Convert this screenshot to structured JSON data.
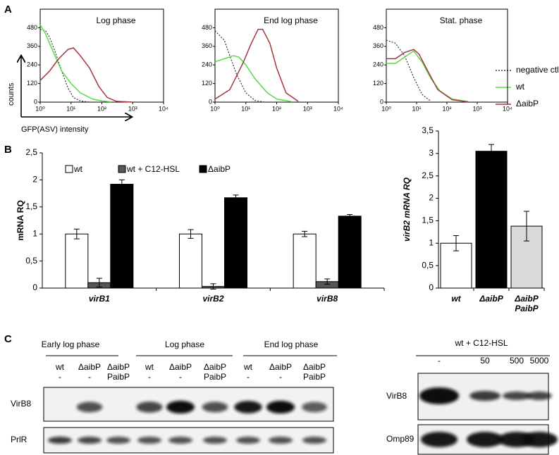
{
  "panel_labels": [
    "A",
    "B",
    "C"
  ],
  "chart_data": [
    {
      "type": "line",
      "title": "Log phase",
      "log_x": true,
      "xlim": [
        1,
        10000
      ],
      "xticks": [
        {
          "value": 1,
          "label": "10⁰"
        },
        {
          "value": 10,
          "label": "10¹"
        },
        {
          "value": 100,
          "label": "10²"
        },
        {
          "value": 1000,
          "label": "10³"
        },
        {
          "value": 10000,
          "label": "10⁴"
        }
      ],
      "ylim": [
        0,
        600
      ],
      "yticks": [
        0,
        120,
        240,
        360,
        480
      ],
      "y_label": "counts",
      "x_label": "GFP(ASV) intensity",
      "legend": "right",
      "series": [
        {
          "name": "negative ctl",
          "color": "#333333",
          "dashed": true,
          "x": [
            1,
            1.5,
            2,
            3,
            5,
            8,
            12,
            20,
            40
          ],
          "values": [
            470,
            460,
            420,
            330,
            200,
            90,
            30,
            8,
            0
          ]
        },
        {
          "name": "wt",
          "color": "#55dd44",
          "dashed": false,
          "x": [
            1,
            1.5,
            2,
            3,
            5,
            10,
            20,
            50,
            100,
            200
          ],
          "values": [
            500,
            440,
            380,
            300,
            200,
            120,
            60,
            20,
            8,
            2
          ]
        },
        {
          "name": "ΔaibP",
          "color": "#a5353f",
          "dashed": false,
          "x": [
            1,
            2,
            4,
            8,
            12,
            20,
            40,
            80,
            150,
            300,
            1000
          ],
          "values": [
            140,
            200,
            280,
            340,
            350,
            300,
            220,
            100,
            30,
            5,
            0
          ]
        }
      ]
    },
    {
      "type": "line",
      "title": "End log phase",
      "log_x": true,
      "xlim": [
        1,
        10000
      ],
      "xticks": [
        {
          "value": 1,
          "label": "10⁰"
        },
        {
          "value": 10,
          "label": "10¹"
        },
        {
          "value": 100,
          "label": "10²"
        },
        {
          "value": 1000,
          "label": "10³"
        },
        {
          "value": 10000,
          "label": "10⁴"
        }
      ],
      "ylim": [
        0,
        600
      ],
      "yticks": [
        0,
        120,
        240,
        360,
        480
      ],
      "series": [
        {
          "color": "#333333",
          "dashed": true,
          "x": [
            1,
            2,
            3,
            5,
            10,
            20,
            40
          ],
          "values": [
            460,
            400,
            300,
            180,
            60,
            10,
            0
          ]
        },
        {
          "color": "#55dd44",
          "dashed": false,
          "x": [
            1,
            2,
            4,
            6,
            10,
            20,
            50,
            100,
            300
          ],
          "values": [
            260,
            280,
            300,
            290,
            240,
            150,
            60,
            20,
            3
          ]
        },
        {
          "color": "#a5353f",
          "dashed": false,
          "x": [
            1,
            3,
            8,
            15,
            25,
            35,
            60,
            100,
            200,
            500
          ],
          "values": [
            20,
            80,
            250,
            380,
            470,
            470,
            380,
            220,
            60,
            5
          ]
        }
      ]
    },
    {
      "type": "line",
      "title": "Stat. phase",
      "log_x": true,
      "xlim": [
        1,
        10000
      ],
      "xticks": [
        {
          "value": 1,
          "label": "10⁰"
        },
        {
          "value": 10,
          "label": "10¹"
        },
        {
          "value": 100,
          "label": "10²"
        },
        {
          "value": 1000,
          "label": "10³"
        },
        {
          "value": 10000,
          "label": "10⁴"
        }
      ],
      "ylim": [
        0,
        600
      ],
      "yticks": [
        0,
        120,
        240,
        360,
        480
      ],
      "series": [
        {
          "color": "#333333",
          "dashed": true,
          "x": [
            1,
            2,
            4,
            8,
            15,
            30
          ],
          "values": [
            400,
            380,
            300,
            160,
            50,
            5
          ]
        },
        {
          "color": "#55dd44",
          "dashed": false,
          "x": [
            1,
            2,
            4,
            8,
            15,
            30,
            60,
            150,
            500
          ],
          "values": [
            250,
            250,
            290,
            330,
            260,
            150,
            70,
            20,
            3
          ]
        },
        {
          "color": "#a5353f",
          "dashed": false,
          "x": [
            1,
            2,
            4,
            8,
            12,
            25,
            50,
            150,
            500
          ],
          "values": [
            280,
            280,
            320,
            340,
            310,
            190,
            80,
            15,
            2
          ]
        }
      ]
    },
    {
      "type": "bar",
      "y_label": "mRNA RQ",
      "categories": [
        "virB1",
        "virB2",
        "virB8"
      ],
      "ylim": [
        0,
        2.5
      ],
      "yticks": [
        0,
        {
          "value": 0.5,
          "label": "0,5"
        },
        1,
        {
          "value": 1.5,
          "label": "1,5"
        },
        2,
        {
          "value": 2.5,
          "label": "2,5"
        }
      ],
      "series": [
        {
          "name": "wt",
          "color": "#ffffff",
          "values": [
            1,
            1,
            1
          ],
          "errors": [
            0.09,
            0.08,
            0.05
          ]
        },
        {
          "name": "wt + C12-HSL",
          "color": "#555555",
          "values": [
            0.1,
            0.03,
            0.12
          ],
          "errors": [
            0.08,
            0.05,
            0.05
          ]
        },
        {
          "name": "ΔaibP",
          "color": "#000000",
          "values": [
            1.92,
            1.67,
            1.33
          ],
          "errors": [
            0.08,
            0.05,
            0.03
          ]
        }
      ]
    },
    {
      "type": "bar",
      "y_label": "virB2 mRNA RQ",
      "categories": [
        "wt",
        "ΔaibP",
        [
          "ΔaibP",
          "PaibP"
        ]
      ],
      "ylim": [
        0,
        3.5
      ],
      "yticks": [
        0,
        {
          "value": 0.5,
          "label": "0,5"
        },
        1,
        {
          "value": 1.5,
          "label": "1,5"
        },
        2,
        {
          "value": 2.5,
          "label": "2,5"
        },
        3,
        {
          "value": 3.5,
          "label": "3,5"
        }
      ],
      "series": [
        {
          "colors": [
            "#ffffff",
            "#000000",
            "#d9d9d9"
          ],
          "values": [
            1,
            3.05,
            1.38
          ],
          "errors": [
            0.17,
            0.15,
            0.33
          ]
        }
      ]
    }
  ],
  "blots": [
    {
      "groups": [
        "Early log phase",
        "Log phase",
        "End log phase"
      ],
      "lanes": [
        [
          "wt",
          "-"
        ],
        [
          "ΔaibP",
          "-"
        ],
        [
          "ΔaibP",
          "PaibP"
        ],
        [
          "wt",
          "-"
        ],
        [
          "ΔaibP",
          "-"
        ],
        [
          "ΔaibP",
          "PaibP"
        ],
        [
          "wt",
          "-"
        ],
        [
          "ΔaibP",
          "-"
        ],
        [
          "ΔaibP",
          "PaibP"
        ]
      ],
      "rows": [
        "VirB8",
        "PrlR"
      ]
    },
    {
      "header": "wt + C12-HSL",
      "lanes": [
        "-",
        "50",
        "500",
        "5000"
      ],
      "rows": [
        "VirB8",
        "Omp89"
      ]
    }
  ]
}
